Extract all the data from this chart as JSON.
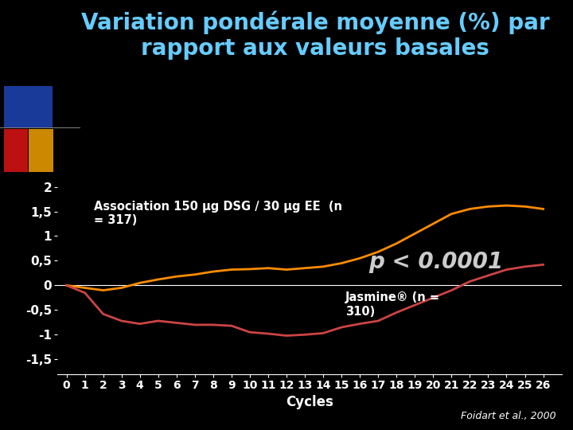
{
  "title_line1": "Variation pondérale moyenne (%) par",
  "title_line2": "rapport aux valeurs basales",
  "background_color": "#000000",
  "title_color": "#66ccff",
  "axis_color": "#ffffff",
  "xlabel": "Cycles",
  "xlabel_color": "#ffffff",
  "ytick_labels": [
    "-1,5",
    "-1",
    "-0,5",
    "0",
    "0,5",
    "1",
    "1,5",
    "2"
  ],
  "ytick_values": [
    -1.5,
    -1.0,
    -0.5,
    0.0,
    0.5,
    1.0,
    1.5,
    2.0
  ],
  "xtick_values": [
    0,
    1,
    2,
    3,
    4,
    5,
    6,
    7,
    8,
    9,
    10,
    11,
    12,
    13,
    14,
    15,
    16,
    17,
    18,
    19,
    20,
    21,
    22,
    23,
    24,
    25,
    26
  ],
  "ylim": [
    -1.8,
    2.3
  ],
  "xlim": [
    -0.5,
    27.0
  ],
  "association_color": "#FF8C00",
  "jasmine_color": "#CC4444",
  "pvalue_text": "p < 0.0001",
  "pvalue_color": "#cccccc",
  "association_label": "Association 150 µg DSG / 30 µg EE  (n\n= 317)",
  "jasmine_label": "Jasmine® (n =\n310)",
  "label_color": "#ffffff",
  "teal_color": "#00aa88",
  "footer_text": "Foidart et al., 2000",
  "footer_color": "#ffffff",
  "association_x": [
    0,
    1,
    2,
    3,
    4,
    5,
    6,
    7,
    8,
    9,
    10,
    11,
    12,
    13,
    14,
    15,
    16,
    17,
    18,
    19,
    20,
    21,
    22,
    23,
    24,
    25,
    26
  ],
  "association_y": [
    0.0,
    -0.05,
    -0.1,
    -0.05,
    0.05,
    0.12,
    0.18,
    0.22,
    0.28,
    0.32,
    0.33,
    0.35,
    0.32,
    0.35,
    0.38,
    0.45,
    0.55,
    0.68,
    0.85,
    1.05,
    1.25,
    1.45,
    1.55,
    1.6,
    1.62,
    1.6,
    1.55
  ],
  "jasmine_x": [
    0,
    1,
    2,
    3,
    4,
    5,
    6,
    7,
    8,
    9,
    10,
    11,
    12,
    13,
    14,
    15,
    16,
    17,
    18,
    19,
    20,
    21,
    22,
    23,
    24,
    25,
    26
  ],
  "jasmine_y": [
    0.0,
    -0.15,
    -0.58,
    -0.72,
    -0.78,
    -0.72,
    -0.76,
    -0.8,
    -0.8,
    -0.82,
    -0.95,
    -0.98,
    -1.02,
    -1.0,
    -0.97,
    -0.85,
    -0.78,
    -0.72,
    -0.55,
    -0.4,
    -0.25,
    -0.1,
    0.08,
    0.2,
    0.32,
    0.38,
    0.42
  ],
  "box_blue": "#1a3a9a",
  "box_red": "#bb1111",
  "box_gold": "#cc8800",
  "title_fontsize": 20,
  "tick_fontsize": 11,
  "label_fontsize": 10.5,
  "pvalue_fontsize": 20,
  "footer_fontsize": 9
}
